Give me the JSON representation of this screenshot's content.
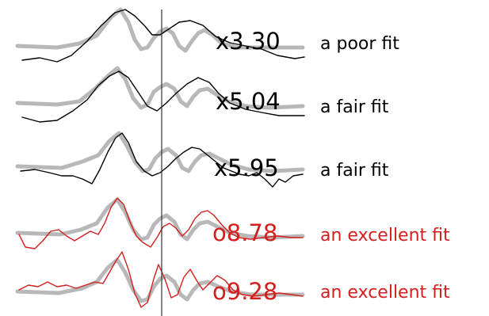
{
  "rows": [
    {
      "score": "x3.30",
      "quality": "a poor fit",
      "color": "#000000"
    },
    {
      "score": "x5.04",
      "quality": "a fair fit",
      "color": "#000000"
    },
    {
      "score": "x5.95",
      "quality": "a fair fit",
      "color": "#000000"
    },
    {
      "score": "o8.78",
      "quality": "an excellent fit",
      "color": "#d41f1f"
    },
    {
      "score": "o9.28",
      "quality": "an excellent fit",
      "color": "#d41f1f"
    }
  ],
  "reference_color": "#b8b8b8",
  "marker_color": "#333333"
}
